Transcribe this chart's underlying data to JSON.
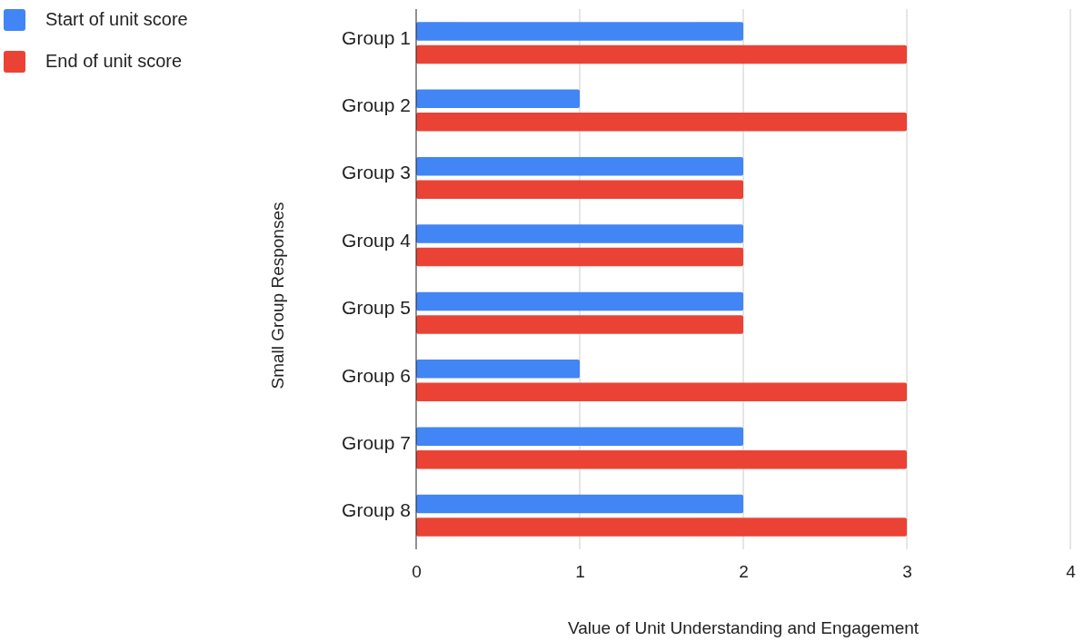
{
  "chart_data": {
    "type": "bar",
    "orientation": "horizontal",
    "xlabel": "Value of Unit Understanding and Engagement",
    "ylabel": "Small Group Responses",
    "categories": [
      "Group 1",
      "Group 2",
      "Group 3",
      "Group 4",
      "Group 5",
      "Group 6",
      "Group 7",
      "Group 8"
    ],
    "series": [
      {
        "name": "Start of unit score",
        "color": "#4285f4",
        "values": [
          2,
          1,
          2,
          2,
          2,
          1,
          2,
          2
        ]
      },
      {
        "name": "End of unit score",
        "color": "#ea4335",
        "values": [
          3,
          3,
          2,
          2,
          2,
          3,
          3,
          3
        ]
      }
    ],
    "xlim": [
      0,
      4
    ],
    "xticks": [
      0,
      1,
      2,
      3,
      4
    ],
    "grid": "x",
    "legend": "top left"
  }
}
